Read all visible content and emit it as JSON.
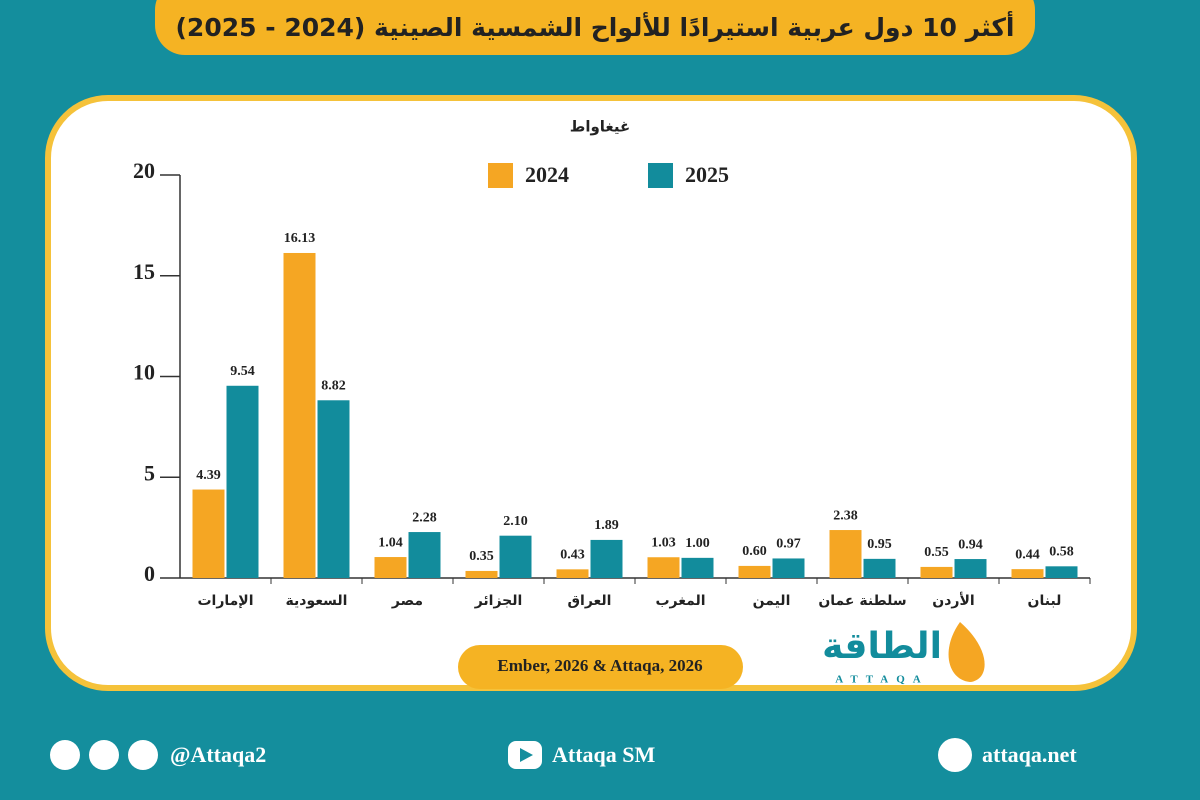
{
  "chart_data": {
    "type": "bar",
    "title": "أكثر 10 دول عربية استيرادًا للألواح الشمسية الصينية (2024 - 2025)",
    "y_label": "غيغاواط",
    "categories": [
      "الإمارات",
      "السعودية",
      "مصر",
      "الجزائر",
      "العراق",
      "المغرب",
      "اليمن",
      "سلطنة عمان",
      "الأردن",
      "لبنان"
    ],
    "series": [
      {
        "name": "2024",
        "color": "#f5a623",
        "values": [
          4.39,
          16.13,
          1.04,
          0.35,
          0.43,
          1.03,
          0.6,
          2.38,
          0.55,
          0.44
        ],
        "value_labels": [
          "4.39",
          "16.13",
          "1.04",
          "0.35",
          "0.43",
          "1.03",
          "0.60",
          "2.38",
          "0.55",
          "0.44"
        ]
      },
      {
        "name": "2025",
        "color": "#128c9c",
        "values": [
          9.54,
          8.82,
          2.28,
          2.1,
          1.89,
          1.0,
          0.97,
          0.95,
          0.94,
          0.58
        ],
        "value_labels": [
          "9.54",
          "8.82",
          "2.28",
          "2.10",
          "1.89",
          "1.00",
          "0.97",
          "0.95",
          "0.94",
          "0.58"
        ]
      }
    ],
    "ylim": [
      0,
      20
    ],
    "yticks": [
      0,
      5,
      10,
      15,
      20
    ],
    "source": "Ember, 2026 & Attaqa, 2026"
  },
  "logo": {
    "name": "الطاقة",
    "latin": "ATTAQA"
  },
  "footer": {
    "social": "@Attaqa2",
    "youtube": "Attaqa SM",
    "website": "attaqa.net"
  }
}
